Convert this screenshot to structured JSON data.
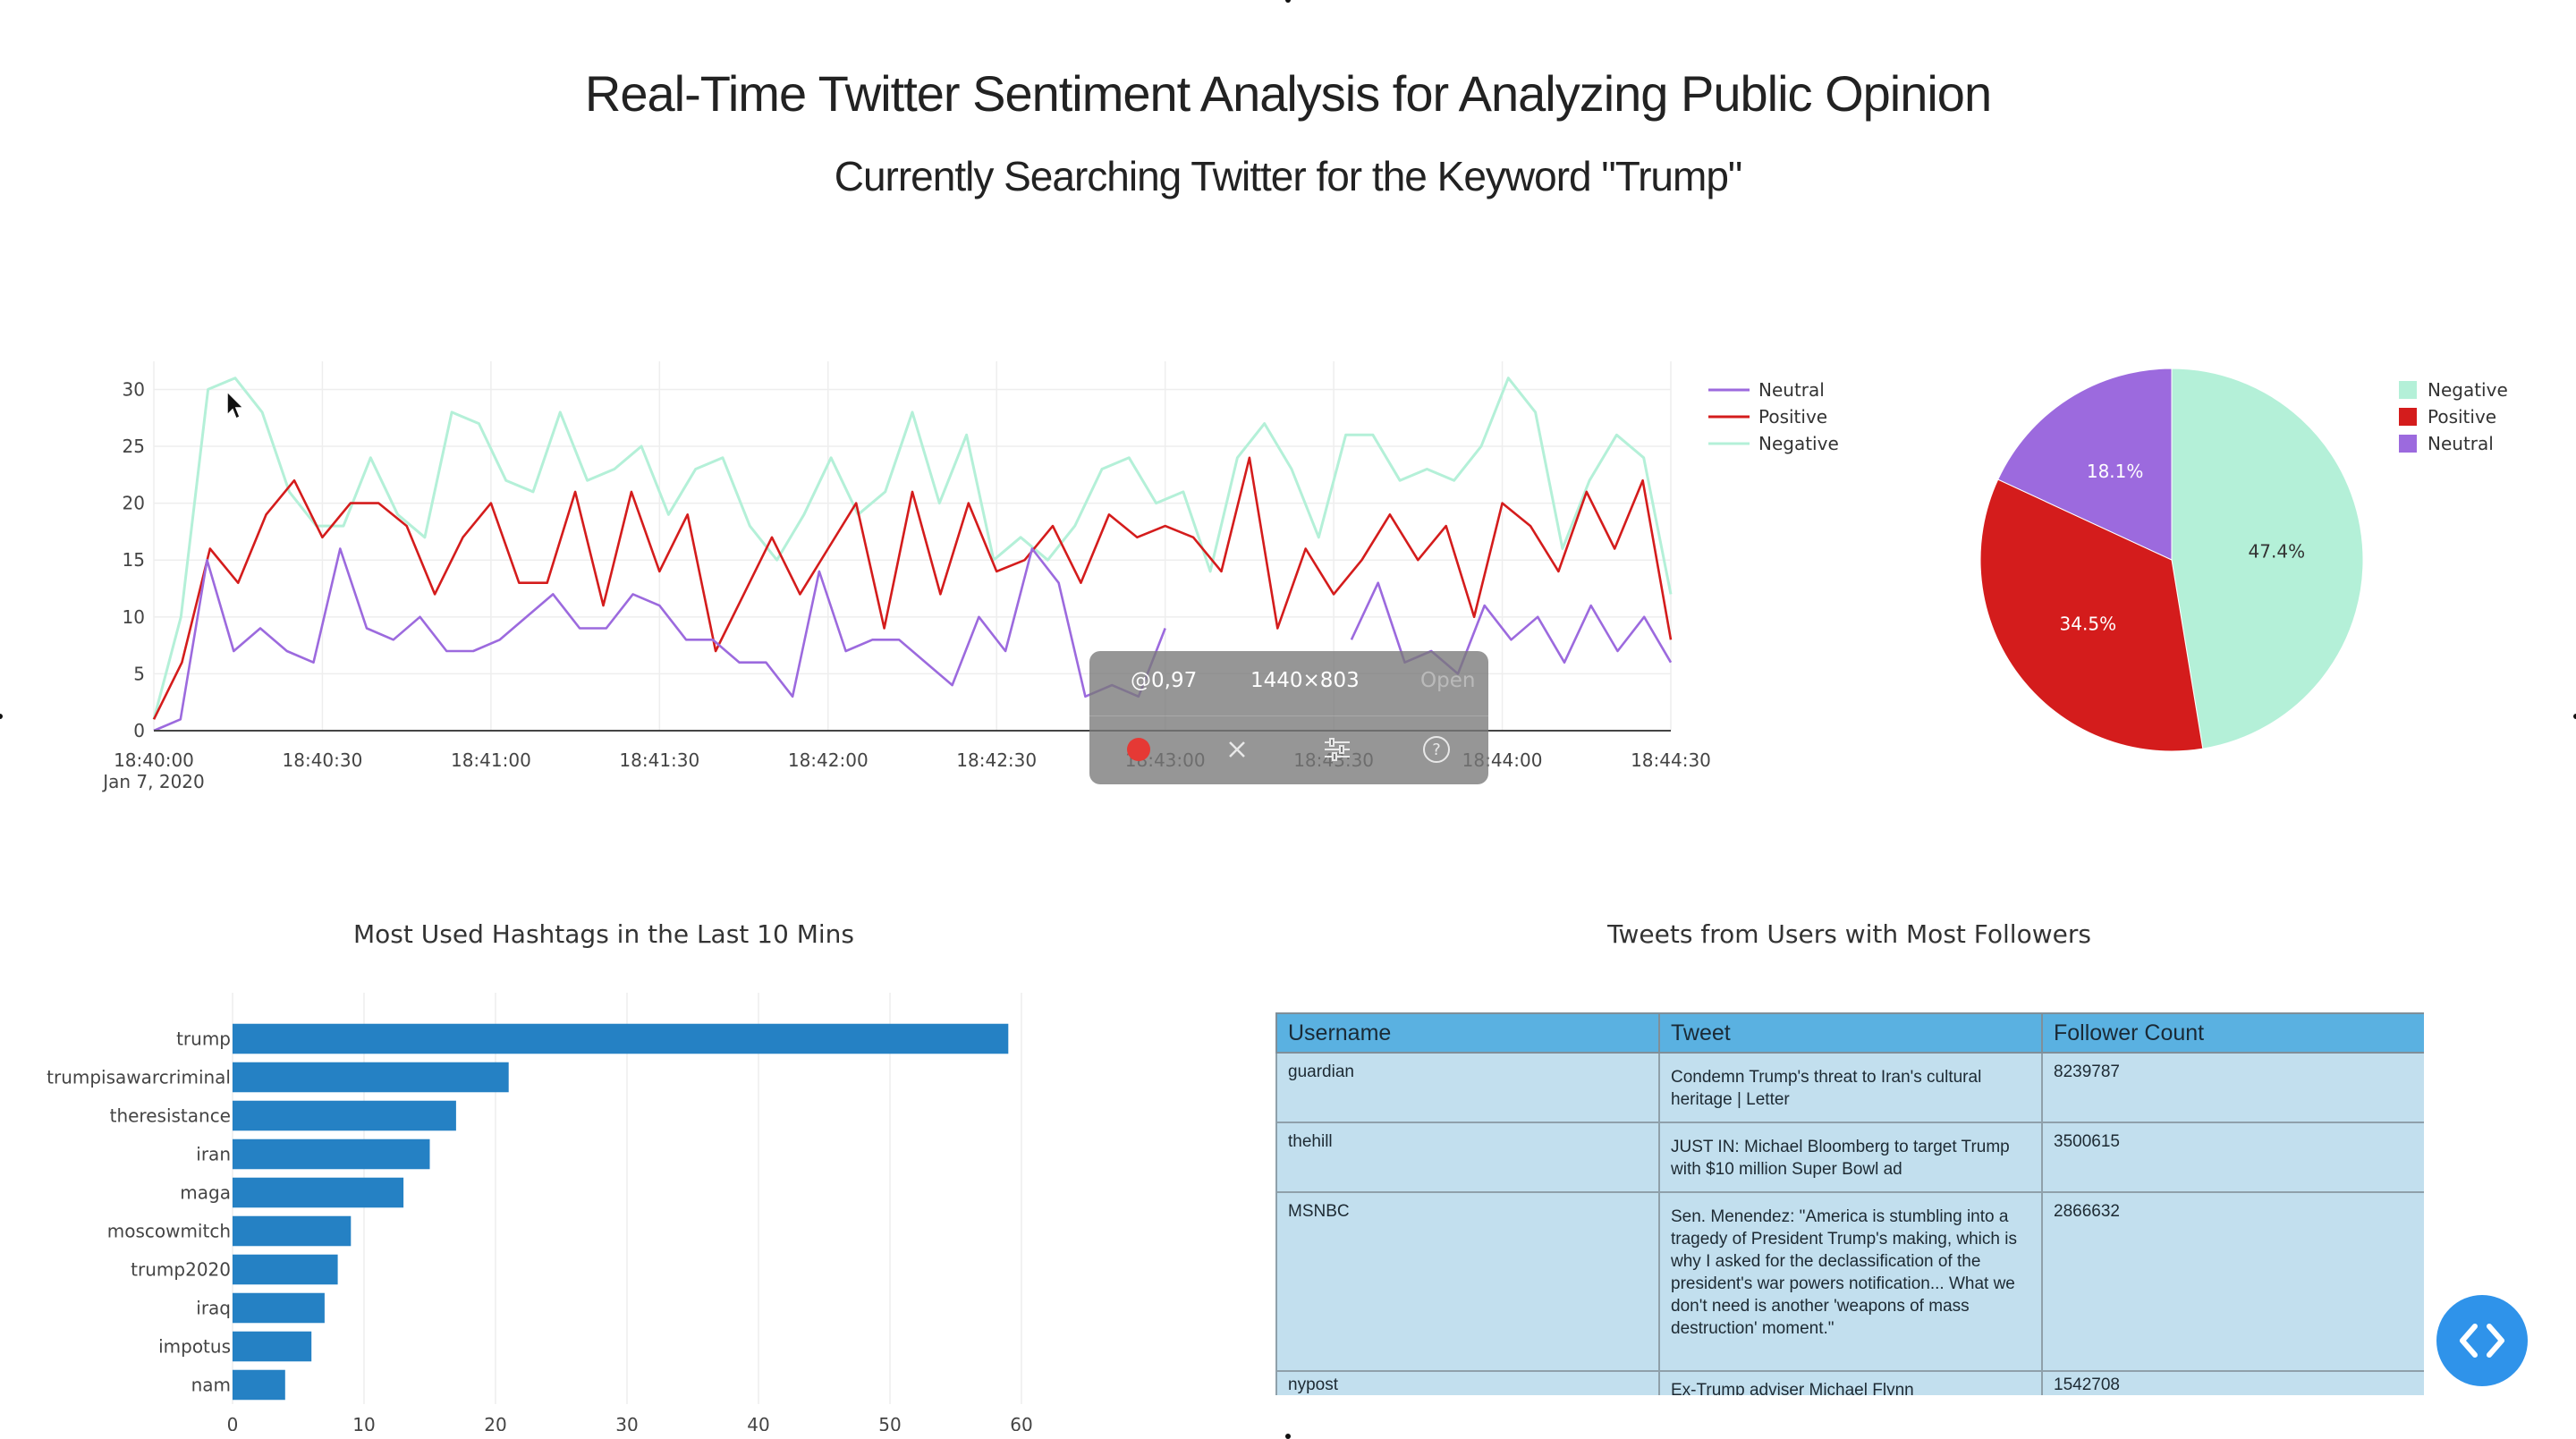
{
  "header": {
    "title": "Real-Time Twitter Sentiment Analysis for Analyzing Public Opinion",
    "subtitle": "Currently Searching Twitter for the Keyword \"Trump\""
  },
  "colors": {
    "neutral": "#9c6ade",
    "positive": "#d41c1c",
    "negative": "#b4f0d8",
    "bar": "#2581c4",
    "table_header": "#5ab1e1",
    "table_cell": "#c2dfee",
    "fab": "#2f93ea"
  },
  "chart_data": [
    {
      "type": "line",
      "x_ticks": [
        "18:40:00",
        "18:40:30",
        "18:41:00",
        "18:41:30",
        "18:42:00",
        "18:42:30",
        "18:43:00",
        "18:43:30",
        "18:44:00",
        "18:44:30"
      ],
      "x_date_label": "Jan 7, 2020",
      "y_ticks": [
        0,
        5,
        10,
        15,
        20,
        25,
        30
      ],
      "ylim": [
        0,
        32
      ],
      "x_seconds_range": [
        0,
        270
      ],
      "legend_position": "right",
      "series": [
        {
          "name": "Neutral",
          "values": [
            0,
            1,
            15,
            7,
            9,
            7,
            6,
            16,
            9,
            8,
            10,
            7,
            7,
            8,
            10,
            12,
            9,
            9,
            12,
            11,
            8,
            8,
            6,
            6,
            3,
            14,
            7,
            8,
            8,
            6,
            4,
            10,
            7,
            16,
            13,
            3,
            4,
            3,
            9,
            6,
            8,
            5,
            5,
            11,
            8,
            8,
            13,
            6,
            7,
            5,
            11,
            8,
            10,
            6,
            11,
            7,
            10,
            6
          ],
          "gap": [
            38,
            45
          ]
        },
        {
          "name": "Positive",
          "values": [
            1,
            6,
            16,
            13,
            19,
            22,
            17,
            20,
            20,
            18,
            12,
            17,
            20,
            13,
            13,
            21,
            11,
            21,
            14,
            19,
            7,
            12,
            17,
            12,
            16,
            20,
            9,
            21,
            12,
            20,
            14,
            15,
            18,
            13,
            19,
            17,
            18,
            17,
            14,
            24,
            9,
            16,
            12,
            15,
            19,
            15,
            18,
            10,
            20,
            18,
            14,
            21,
            16,
            22,
            8
          ],
          "gap": []
        },
        {
          "name": "Negative",
          "values": [
            1,
            10,
            30,
            31,
            28,
            21,
            18,
            18,
            24,
            19,
            17,
            28,
            27,
            22,
            21,
            28,
            22,
            23,
            25,
            19,
            23,
            24,
            18,
            15,
            19,
            24,
            19,
            21,
            28,
            20,
            26,
            15,
            17,
            15,
            18,
            23,
            24,
            20,
            21,
            14,
            24,
            27,
            23,
            17,
            26,
            26,
            22,
            23,
            22,
            25,
            31,
            28,
            16,
            22,
            26,
            24,
            12
          ],
          "gap": []
        }
      ]
    },
    {
      "type": "pie",
      "legend": [
        "Negative",
        "Positive",
        "Neutral"
      ],
      "values": [
        47.4,
        34.5,
        18.1
      ],
      "labels": [
        "47.4%",
        "34.5%",
        "18.1%"
      ],
      "legend_position": "top-right"
    },
    {
      "type": "bar",
      "orientation": "horizontal",
      "title": "Most Used Hashtags in the Last 10 Mins",
      "categories": [
        "trump",
        "trumpisawarcriminal",
        "theresistance",
        "iran",
        "maga",
        "moscowmitch",
        "trump2020",
        "iraq",
        "impotus",
        "nam"
      ],
      "values": [
        59,
        21,
        17,
        15,
        13,
        9,
        8,
        7,
        6,
        4
      ],
      "x_ticks": [
        0,
        10,
        20,
        30,
        40,
        50,
        60
      ],
      "xlim": [
        0,
        60
      ]
    }
  ],
  "table": {
    "title": "Tweets from Users with Most Followers",
    "headers": [
      "Username",
      "Tweet",
      "Follower Count"
    ],
    "rows": [
      {
        "username": "guardian",
        "tweet": "Condemn Trump's threat to Iran's cultural heritage | Letter",
        "followers": "8239787"
      },
      {
        "username": "thehill",
        "tweet": "JUST IN: Michael Bloomberg to target Trump with $10 million Super Bowl ad",
        "followers": "3500615"
      },
      {
        "username": "MSNBC",
        "tweet": "Sen. Menendez: \"America is stumbling into a tragedy of President Trump's making, which is why I asked for the declassification of the president's war powers notification... What we don't need is another 'weapons of mass destruction' moment.\"",
        "followers": "2866632"
      },
      {
        "username": "nypost",
        "tweet": "Ex-Trump adviser Michael Flynn",
        "followers": "1542708"
      }
    ]
  },
  "overlay": {
    "coord": "@0,97",
    "dims": "1440×803",
    "open_label": "Open"
  }
}
